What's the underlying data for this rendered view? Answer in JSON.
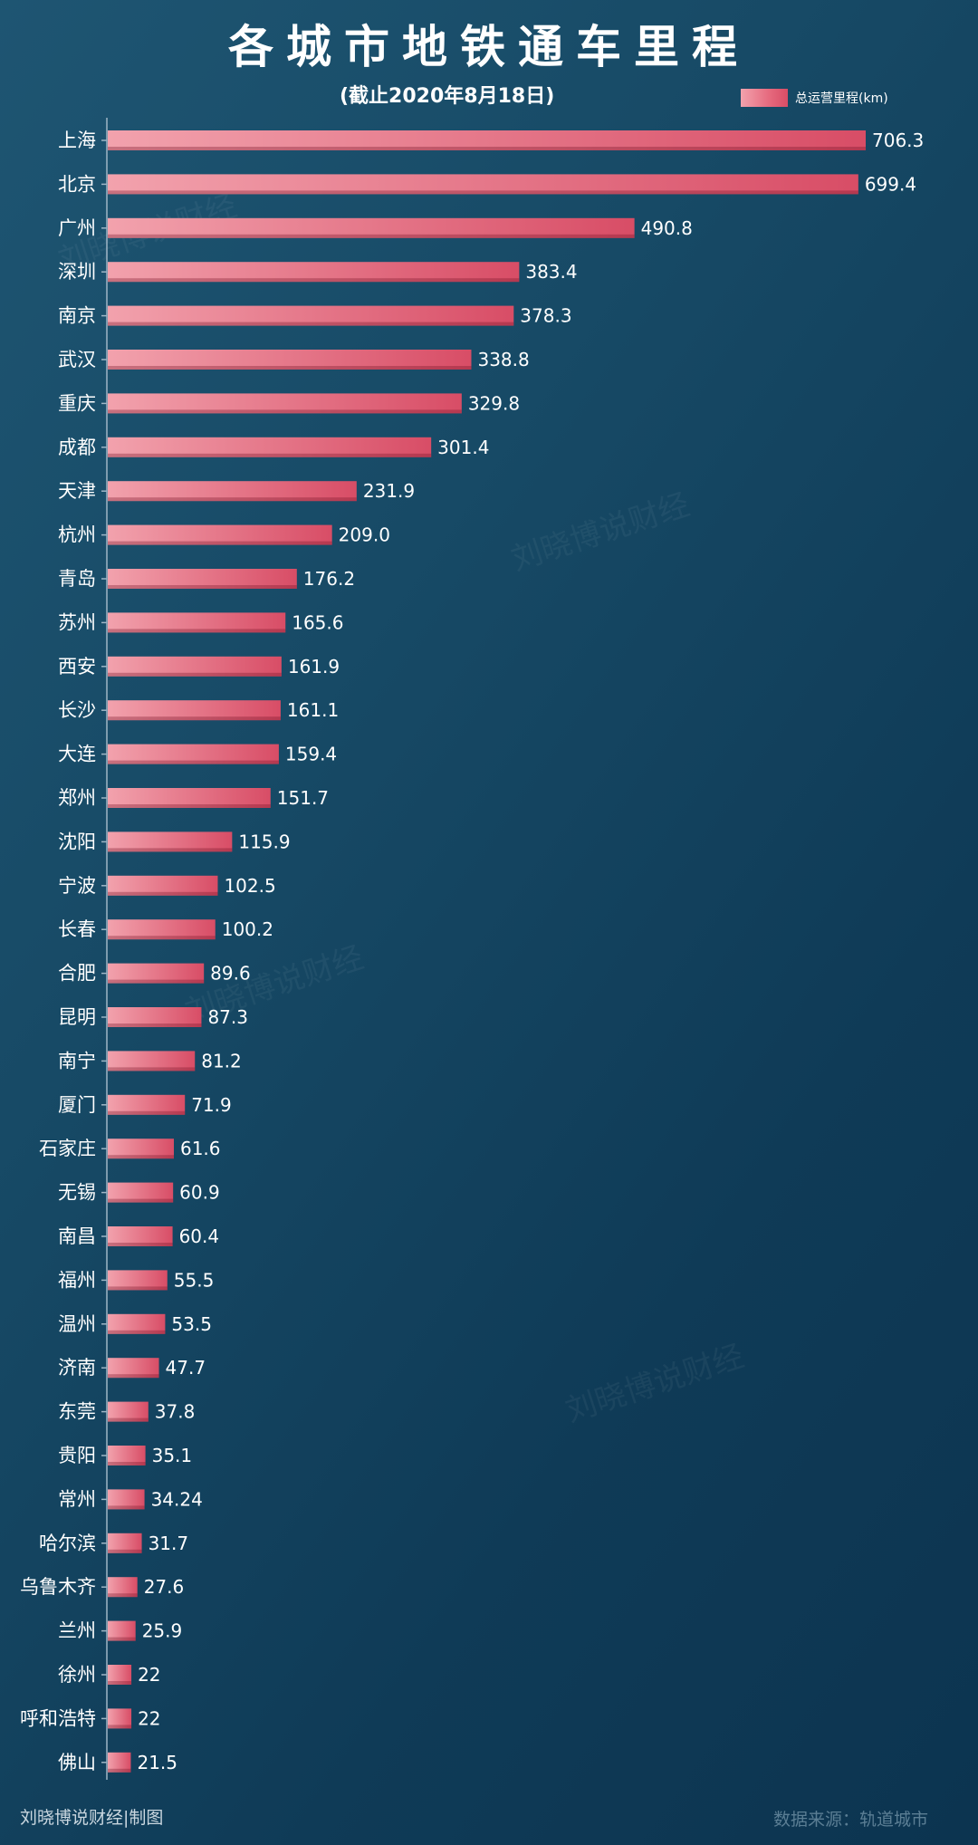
{
  "chart_data": {
    "type": "bar",
    "orientation": "horizontal",
    "title": "各城市地铁通车里程",
    "subtitle": "(截止2020年8月18日)",
    "categories": [
      "上海",
      "北京",
      "广州",
      "深圳",
      "南京",
      "武汉",
      "重庆",
      "成都",
      "天津",
      "杭州",
      "青岛",
      "苏州",
      "西安",
      "长沙",
      "大连",
      "郑州",
      "沈阳",
      "宁波",
      "长春",
      "合肥",
      "昆明",
      "南宁",
      "厦门",
      "石家庄",
      "无锡",
      "南昌",
      "福州",
      "温州",
      "济南",
      "东莞",
      "贵阳",
      "常州",
      "哈尔滨",
      "乌鲁木齐",
      "兰州",
      "徐州",
      "呼和浩特",
      "佛山"
    ],
    "series": [
      {
        "name": "总运营里程(km)",
        "values": [
          706.3,
          699.4,
          490.8,
          383.4,
          378.3,
          338.8,
          329.8,
          301.4,
          231.9,
          209.0,
          176.2,
          165.6,
          161.9,
          161.1,
          159.4,
          151.7,
          115.9,
          102.5,
          100.2,
          89.6,
          87.3,
          81.2,
          71.9,
          61.6,
          60.9,
          60.4,
          55.5,
          53.5,
          47.7,
          37.8,
          35.1,
          34.24,
          31.7,
          27.6,
          25.9,
          22,
          22,
          21.5
        ],
        "labels": [
          "706.3",
          "699.4",
          "490.8",
          "383.4",
          "378.3",
          "338.8",
          "329.8",
          "301.4",
          "231.9",
          "209.0",
          "176.2",
          "165.6",
          "161.9",
          "161.1",
          "159.4",
          "151.7",
          "115.9",
          "102.5",
          "100.2",
          "89.6",
          "87.3",
          "81.2",
          "71.9",
          "61.6",
          "60.9",
          "60.4",
          "55.5",
          "53.5",
          "47.7",
          "37.8",
          "35.1",
          "34.24",
          "31.7",
          "27.6",
          "25.9",
          "22",
          "22",
          "21.5"
        ],
        "color": "#e0566e"
      }
    ],
    "xlim": [
      0,
      706.3
    ],
    "grid": false,
    "legend_position": "top-right"
  },
  "legend": {
    "label": "总运营里程(km)"
  },
  "footer": {
    "credit": "刘晓博说财经|制图",
    "source": "数据来源：轨道城市"
  },
  "watermark": "刘晓博说财经",
  "colors": {
    "bar_light": "#f2a2ad",
    "bar_dark": "#d84d66",
    "background": "#174a66"
  }
}
